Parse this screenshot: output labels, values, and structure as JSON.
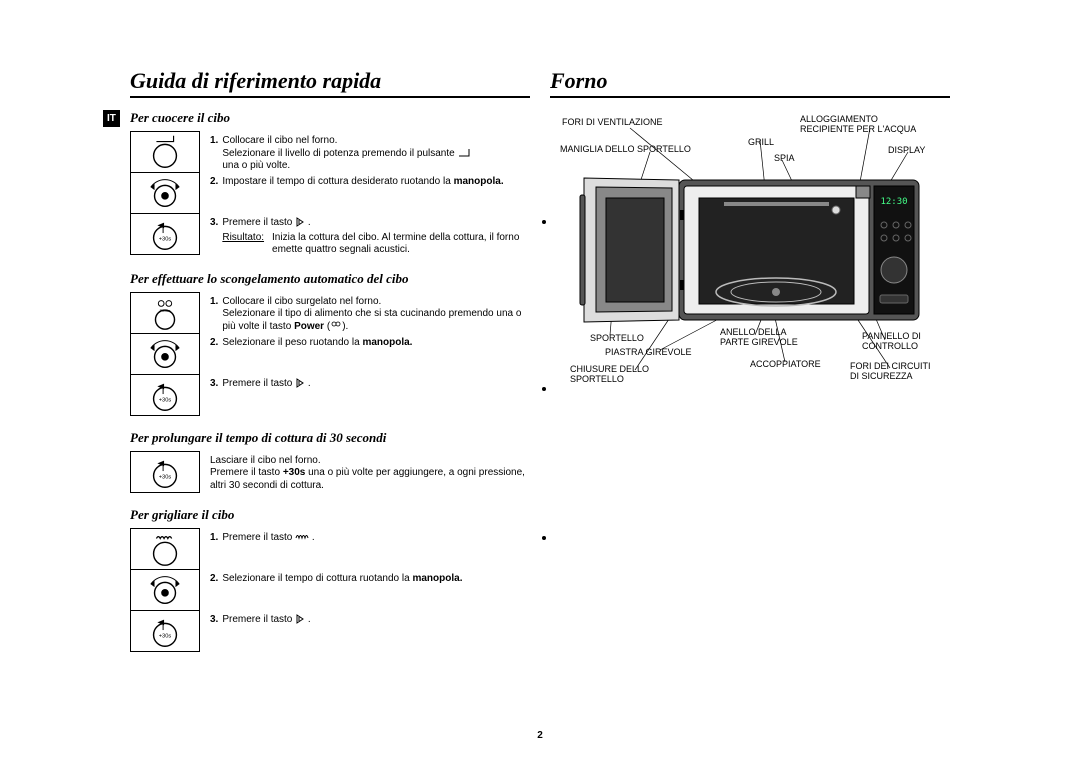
{
  "page_number": "2",
  "lang_tag": "IT",
  "left": {
    "title": "Guida di riferimento rapida",
    "sections": [
      {
        "heading": "Per cuocere il cibo",
        "steps": [
          {
            "num": "1.",
            "text": "Collocare il cibo nel forno.\nSelezionare il livello di potenza premendo il pulsante",
            "tail": "una o più volte.",
            "icon": "power_angle"
          },
          {
            "num": "2.",
            "text": "Impostare il tempo di cottura desiderato ruotando la",
            "bold_tail": "manopola.",
            "icon": "dial"
          },
          {
            "num": "3.",
            "text": "Premere il tasto",
            "glyph": "start",
            "result_label": "Risultato:",
            "result_text": "Inizia la cottura del cibo. Al termine della cottura, il forno emette quattro segnali acustici.",
            "icon": "start30"
          }
        ]
      },
      {
        "heading": "Per effettuare lo scongelamento automatico del cibo",
        "steps": [
          {
            "num": "1.",
            "text": "Collocare il cibo surgelato nel forno.\nSelezionare il tipo di alimento che si sta cucinando premendo una o più volte il tasto",
            "bold_inline": "Power",
            "glyph_tail": "defrost",
            "icon": "defrost"
          },
          {
            "num": "2.",
            "text": "Selezionare il peso ruotando la",
            "bold_tail": "manopola.",
            "icon": "dial"
          },
          {
            "num": "3.",
            "text": "Premere il tasto",
            "glyph": "start",
            "icon": "start30"
          }
        ]
      },
      {
        "heading": "Per prolungare il tempo di cottura di 30 secondi",
        "steps": [
          {
            "num": "",
            "text": "Lasciare il cibo nel forno.\nPremere il tasto",
            "bold_inline": "+30s",
            "tail2": "una o più volte per aggiungere, a ogni pressione, altri 30 secondi di cottura.",
            "icon": "start30"
          }
        ]
      },
      {
        "heading": "Per grigliare il cibo",
        "steps": [
          {
            "num": "1.",
            "text": "Premere il tasto",
            "glyph": "grill",
            "icon": "grill"
          },
          {
            "num": "2.",
            "text": "Selezionare il tempo di cottura ruotando la",
            "bold_tail": "manopola.",
            "icon": "dial"
          },
          {
            "num": "3.",
            "text": "Premere il tasto",
            "glyph": "start",
            "icon": "start30"
          }
        ]
      }
    ]
  },
  "right": {
    "title": "Forno",
    "labels": {
      "vent": "FORI DI VENTILAZIONE",
      "handle": "MANIGLIA DELLO SPORTELLO",
      "grill": "GRILL",
      "lamp": "SPIA",
      "water": "ALLOGGIAMENTO\nRECIPIENTE PER L'ACQUA",
      "display": "DISPLAY",
      "door": "SPORTELLO",
      "plate": "PIASTRA GIREVOLE",
      "latch": "CHIUSURE DELLO\nSPORTELLO",
      "ring": "ANELLO DELLA\nPARTE GIREVOLE",
      "coupler": "ACCOPPIATORE",
      "panel": "PANNELLO DI\nCONTROLLO",
      "safety": "FORI DEI CIRCUITI\nDI SICUREZZA"
    }
  }
}
